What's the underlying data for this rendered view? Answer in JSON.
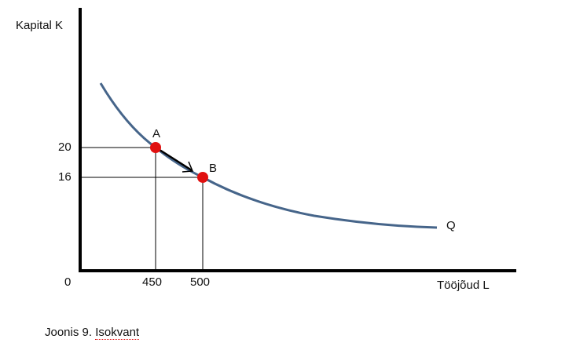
{
  "diagram": {
    "y_axis_label": "Kapital K",
    "x_axis_label": "Tööjõud L",
    "origin_label": "0",
    "y_ticks": [
      "20",
      "16"
    ],
    "x_ticks": [
      "450",
      "500"
    ],
    "curve_label": "Q",
    "points": [
      {
        "label": "A",
        "L": 450,
        "K": 20
      },
      {
        "label": "B",
        "L": 500,
        "K": 16
      }
    ],
    "colors": {
      "curve": "#46658a",
      "point": "#e01010",
      "axis": "#000000"
    }
  },
  "caption": {
    "prefix": "Joonis 9. ",
    "word": "Isokvant"
  }
}
